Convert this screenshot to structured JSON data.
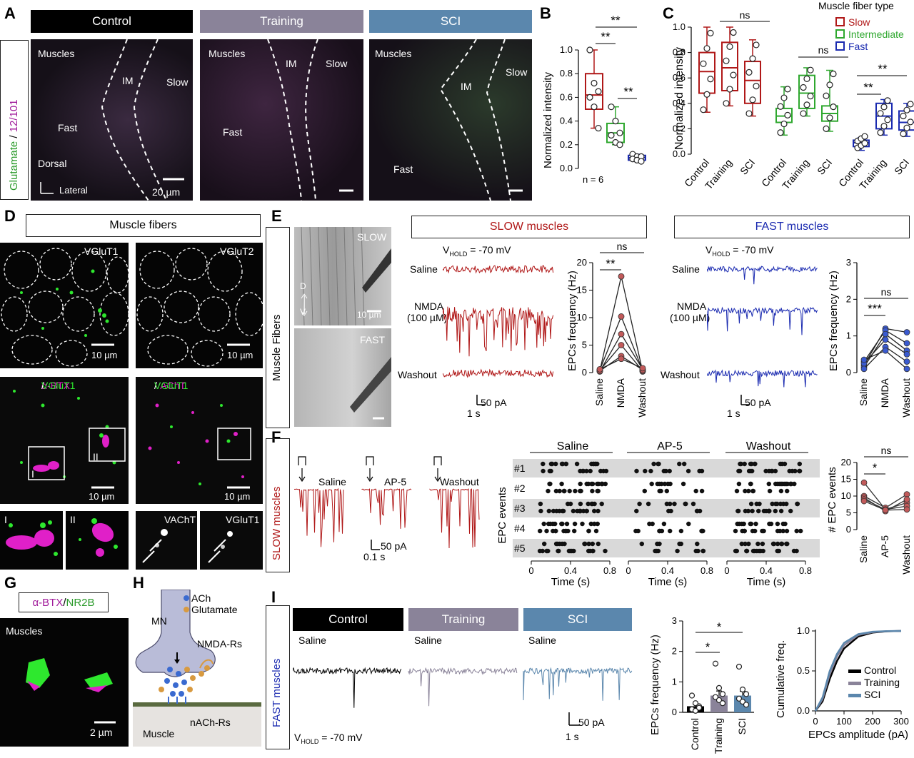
{
  "panelA": {
    "letter": "A",
    "side_label_1": "Glutamate",
    "side_label_sep": " / ",
    "side_label_2": "12/101",
    "headers": [
      "Control",
      "Training",
      "SCI"
    ],
    "header_colors": [
      "#000000",
      "#8a8399",
      "#5b87ad"
    ],
    "img1": {
      "muscles": "Muscles",
      "im": "IM",
      "slow": "Slow",
      "fast": "Fast",
      "dorsal": "Dorsal",
      "lateral": "Lateral",
      "scale": "20 µm"
    },
    "img2": {
      "muscles": "Muscles",
      "im": "IM",
      "slow": "Slow",
      "fast": "Fast"
    },
    "img3": {
      "muscles": "Muscles",
      "im": "IM",
      "slow": "Slow",
      "fast": "Fast"
    }
  },
  "panelB": {
    "letter": "B",
    "ylabel": "Normalized intensity",
    "yticks": [
      "0.0",
      "0.2",
      "0.4",
      "0.6",
      "0.8",
      "1.0"
    ],
    "n_label": "n = 6",
    "sig": [
      "**",
      "**",
      "**"
    ]
  },
  "panelC": {
    "letter": "C",
    "ylabel": "Normalized intensity",
    "yticks": [
      "0.0",
      "0.2",
      "0.4",
      "0.6",
      "0.8",
      "1.0"
    ],
    "legend_title": "Muscle fiber type",
    "legend": [
      {
        "name": "Slow",
        "color": "#b01818"
      },
      {
        "name": "Intermediate",
        "color": "#2fa82f"
      },
      {
        "name": "Fast",
        "color": "#1a2ab0"
      }
    ],
    "xlabels": [
      "Control",
      "Training",
      "SCI"
    ],
    "sig": [
      "ns",
      "ns",
      "**",
      "**"
    ]
  },
  "panelD": {
    "letter": "D",
    "header": "Muscle fibers",
    "img1": "VGluT1",
    "img2": "VGluT2",
    "scale1": "10 µm",
    "scale2": "10 µm",
    "img3a": "α-BTX",
    "img3b": "VGluT1",
    "img4a": "VAChT",
    "img4b": "VGluT1",
    "scale3": "10 µm",
    "scale4": "10 µm",
    "roi1": "I",
    "roi2": "II",
    "zoom1": "I",
    "zoom2": "II",
    "zoom3": "VAChT",
    "zoom4": "VGluT1",
    "sep": " / "
  },
  "panelE": {
    "letter": "E",
    "side_label": "Muscle Fibers",
    "slow_img": "SLOW",
    "fast_img": "FAST",
    "dv_d": "D",
    "dv_v": "V",
    "img_scale": "10 µm",
    "slow_header": "SLOW muscles",
    "fast_header": "FAST muscles",
    "vhold_prefix": "V",
    "vhold_sub": "HOLD",
    "vhold_value": " = -70 mV",
    "conditions": [
      "Saline",
      "NMDA",
      "(100 µM)",
      "Washout"
    ],
    "scale_y": "50 pA",
    "scale_x": "1 s",
    "slow_ylabel": "EPCs frequency (Hz)",
    "slow_yticks": [
      "0",
      "5",
      "10",
      "15",
      "20"
    ],
    "fast_ylabel": "EPCs frequency (Hz)",
    "fast_yticks": [
      "0",
      "1",
      "2",
      "3"
    ],
    "xcats": [
      "Saline",
      "NMDA",
      "Washout"
    ],
    "slow_sig": [
      "ns",
      "**"
    ],
    "fast_sig": [
      "ns",
      "***"
    ]
  },
  "panelF": {
    "letter": "F",
    "side_label": "SLOW muscles",
    "trace_labels": [
      "Saline",
      "AP-5",
      "Washout"
    ],
    "scale_y": "50 pA",
    "scale_x": "0.1 s",
    "raster_headers": [
      "Saline",
      "AP-5",
      "Washout"
    ],
    "raster_ylabel": "EPC events",
    "rows": [
      "#1",
      "#2",
      "#3",
      "#4",
      "#5"
    ],
    "xticks": [
      "0",
      "0.4",
      "0.8"
    ],
    "xlabel": "Time (s)",
    "count_ylabel": "# EPC events",
    "count_yticks": [
      "0",
      "5",
      "10",
      "15",
      "20"
    ],
    "xcats": [
      "Saline",
      "AP-5",
      "Washout"
    ],
    "sig": [
      "ns",
      "*"
    ]
  },
  "panelG": {
    "letter": "G",
    "header_a": "α-BTX",
    "header_sep": " / ",
    "header_b": "NR2B",
    "muscles": "Muscles",
    "scale": "2 µm"
  },
  "panelH": {
    "letter": "H",
    "mn": "MN",
    "legend": [
      "ACh",
      "Glutamate"
    ],
    "nmda": "NMDA-Rs",
    "nach": "nACh-Rs",
    "muscle": "Muscle"
  },
  "panelI": {
    "letter": "I",
    "side_label": "FAST muscles",
    "headers": [
      "Control",
      "Training",
      "SCI"
    ],
    "header_colors": [
      "#000000",
      "#8a8399",
      "#5b87ad"
    ],
    "saline": "Saline",
    "vhold_prefix": "V",
    "vhold_sub": "HOLD",
    "vhold_value": " = -70 mV",
    "scale_y": "50 pA",
    "scale_x": "1 s",
    "bar_ylabel": "EPCs frequency (Hz)",
    "bar_yticks": [
      "0",
      "1",
      "2",
      "3"
    ],
    "bar_xcats": [
      "Control",
      "Training",
      "SCI"
    ],
    "sig": [
      "*",
      "*"
    ],
    "cum_ylabel": "Cumulative freq.",
    "cum_yticks": [
      "0.0",
      "0.5",
      "1.0"
    ],
    "cum_xticks": [
      "0",
      "100",
      "200",
      "300"
    ],
    "cum_xlabel": "EPCs amplitude (pA)",
    "cum_legend": [
      "Control",
      "Training",
      "SCI"
    ]
  },
  "chart_data": [
    {
      "panel": "B",
      "type": "box",
      "categories": [
        "",
        "",
        ""
      ],
      "colors": [
        "#b01818",
        "#2fa82f",
        "#1a2ab0"
      ],
      "series": [
        {
          "name": "",
          "values": [
            1.0,
            0.72,
            0.65,
            0.6,
            0.52,
            0.34
          ]
        },
        {
          "name": "",
          "values": [
            0.52,
            0.4,
            0.3,
            0.28,
            0.22,
            0.2
          ]
        },
        {
          "name": "",
          "values": [
            0.12,
            0.1,
            0.1,
            0.08,
            0.07,
            0.06
          ]
        }
      ],
      "box": [
        [
          0.5,
          0.8,
          0.62,
          0.34,
          1.0
        ],
        [
          0.22,
          0.38,
          0.3,
          0.2,
          0.52
        ],
        [
          0.07,
          0.11,
          0.09,
          0.06,
          0.12
        ]
      ],
      "ylim": [
        0,
        1.0
      ]
    },
    {
      "panel": "C",
      "type": "box",
      "groups": [
        "Slow",
        "Intermediate",
        "Fast"
      ],
      "categories": [
        "Control",
        "Training",
        "SCI"
      ],
      "box": [
        [
          [
            0.48,
            0.8,
            0.65,
            0.33,
            1.0
          ],
          [
            0.5,
            0.88,
            0.68,
            0.38,
            1.0
          ],
          [
            0.4,
            0.73,
            0.58,
            0.3,
            0.9
          ]
        ],
        [
          [
            0.25,
            0.36,
            0.3,
            0.15,
            0.53
          ],
          [
            0.36,
            0.62,
            0.48,
            0.3,
            0.68
          ],
          [
            0.26,
            0.38,
            0.32,
            0.18,
            0.66
          ]
        ],
        [
          [
            0.06,
            0.11,
            0.09,
            0.03,
            0.13
          ],
          [
            0.2,
            0.4,
            0.3,
            0.15,
            0.43
          ],
          [
            0.19,
            0.34,
            0.25,
            0.14,
            0.4
          ]
        ]
      ],
      "ylim": [
        0,
        1.0
      ]
    },
    {
      "panel": "E-slow",
      "type": "line",
      "categories": [
        "Saline",
        "NMDA",
        "Washout"
      ],
      "series": [
        {
          "name": "",
          "values": [
            0.3,
            17.5,
            0.2
          ]
        },
        {
          "name": "",
          "values": [
            0.5,
            10.2,
            0.4
          ]
        },
        {
          "name": "",
          "values": [
            0.2,
            7.0,
            0.6
          ]
        },
        {
          "name": "",
          "values": [
            0.4,
            5.0,
            0.3
          ]
        },
        {
          "name": "",
          "values": [
            0.3,
            3.0,
            0.5
          ]
        },
        {
          "name": "",
          "values": [
            0.6,
            2.5,
            0.8
          ]
        }
      ],
      "ylim": [
        0,
        20
      ]
    },
    {
      "panel": "E-fast",
      "type": "line",
      "categories": [
        "Saline",
        "NMDA",
        "Washout"
      ],
      "series": [
        {
          "name": "",
          "values": [
            0.2,
            1.2,
            1.1
          ]
        },
        {
          "name": "",
          "values": [
            0.3,
            1.15,
            0.8
          ]
        },
        {
          "name": "",
          "values": [
            0.15,
            1.05,
            0.6
          ]
        },
        {
          "name": "",
          "values": [
            0.25,
            0.9,
            0.5
          ]
        },
        {
          "name": "",
          "values": [
            0.1,
            0.7,
            0.3
          ]
        },
        {
          "name": "",
          "values": [
            0.35,
            0.6,
            0.1
          ]
        }
      ],
      "ylim": [
        0,
        3
      ]
    },
    {
      "panel": "F-count",
      "type": "line",
      "categories": [
        "Saline",
        "AP-5",
        "Washout"
      ],
      "series": [
        {
          "name": "",
          "values": [
            14,
            6,
            8
          ]
        },
        {
          "name": "",
          "values": [
            10,
            6.5,
            10.5
          ]
        },
        {
          "name": "",
          "values": [
            9.5,
            5.5,
            9
          ]
        },
        {
          "name": "",
          "values": [
            9,
            6,
            7
          ]
        },
        {
          "name": "",
          "values": [
            8.5,
            5.8,
            6
          ]
        }
      ],
      "ylim": [
        0,
        20
      ]
    },
    {
      "panel": "I-bar",
      "type": "bar",
      "categories": [
        "Control",
        "Training",
        "SCI"
      ],
      "values": [
        0.2,
        0.55,
        0.55
      ],
      "errors": [
        0.07,
        0.15,
        0.14
      ],
      "points": [
        [
          0.55,
          0.3,
          0.2,
          0.1,
          0.05,
          0.15
        ],
        [
          1.6,
          0.8,
          0.6,
          0.5,
          0.4,
          0.3
        ],
        [
          1.5,
          0.75,
          0.6,
          0.45,
          0.35,
          0.25
        ]
      ],
      "ylim": [
        0,
        3
      ]
    },
    {
      "panel": "I-cum",
      "type": "line",
      "series": [
        {
          "name": "Control",
          "x": [
            0,
            25,
            50,
            75,
            100,
            150,
            200,
            250,
            300
          ],
          "values": [
            0,
            0.12,
            0.4,
            0.62,
            0.78,
            0.93,
            0.98,
            0.995,
            1.0
          ]
        },
        {
          "name": "Training",
          "x": [
            0,
            25,
            50,
            75,
            100,
            150,
            200,
            250,
            300
          ],
          "values": [
            0,
            0.15,
            0.46,
            0.68,
            0.82,
            0.95,
            0.985,
            0.997,
            1.0
          ]
        },
        {
          "name": "SCI",
          "x": [
            0,
            25,
            50,
            75,
            100,
            150,
            200,
            250,
            300
          ],
          "values": [
            0,
            0.17,
            0.5,
            0.71,
            0.85,
            0.96,
            0.99,
            0.998,
            1.0
          ]
        }
      ],
      "xlim": [
        0,
        300
      ],
      "ylim": [
        0,
        1.0
      ]
    }
  ]
}
